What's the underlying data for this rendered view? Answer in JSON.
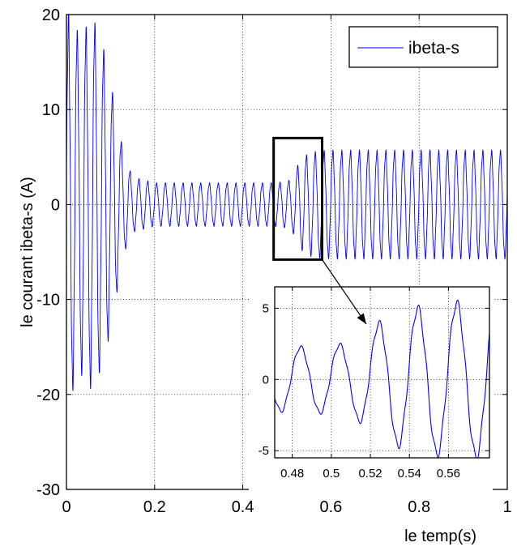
{
  "chart_data": [
    {
      "type": "line",
      "xlabel": "le temp(s)",
      "ylabel": "le courant ibeta-s (A)",
      "xlim": [
        0,
        1
      ],
      "ylim": [
        -30,
        20
      ],
      "x_ticks": [
        0,
        0.2,
        0.4,
        0.6,
        0.8,
        1
      ],
      "x_tick_labels": [
        "0",
        "0.2",
        "0.4",
        "0.6",
        "0.8",
        "1"
      ],
      "y_ticks": [
        -30,
        -20,
        -10,
        0,
        10,
        20
      ],
      "y_tick_labels": [
        "-30",
        "-20",
        "-10",
        "0",
        "10",
        "20"
      ],
      "grid": "dotted",
      "legend": "top-right",
      "series": [
        {
          "name": "ibeta-s",
          "color": "#0000ff",
          "frequency_hz": 50,
          "envelope": {
            "t": [
              0,
              0.005,
              0.03,
              0.06,
              0.09,
              0.11,
              0.13,
              0.15,
              0.2,
              0.3,
              0.4,
              0.47,
              0.49,
              0.51,
              0.53,
              0.55,
              0.57,
              0.6,
              0.7,
              1.0
            ],
            "amplitude": [
              14,
              20,
              17,
              19,
              15,
              10,
              5,
              2.8,
              2.2,
              2.2,
              2.2,
              2.2,
              2.3,
              2.5,
              4.5,
              5.2,
              5.4,
              5.5,
              5.5,
              5.5
            ]
          }
        }
      ],
      "zoom_box": {
        "x_range": [
          0.47,
          0.58
        ],
        "y_range": [
          -5.8,
          7
        ]
      }
    },
    {
      "type": "line",
      "role": "inset",
      "xlim": [
        0.471,
        0.581
      ],
      "ylim": [
        -5.5,
        6.5
      ],
      "x_ticks": [
        0.48,
        0.5,
        0.52,
        0.54,
        0.56
      ],
      "x_tick_labels": [
        "0.48",
        "0.5",
        "0.52",
        "0.54",
        "0.56"
      ],
      "y_ticks": [
        -5,
        0,
        5
      ],
      "y_tick_labels": [
        "-5",
        "0",
        "5"
      ],
      "grid": "dotted"
    }
  ]
}
